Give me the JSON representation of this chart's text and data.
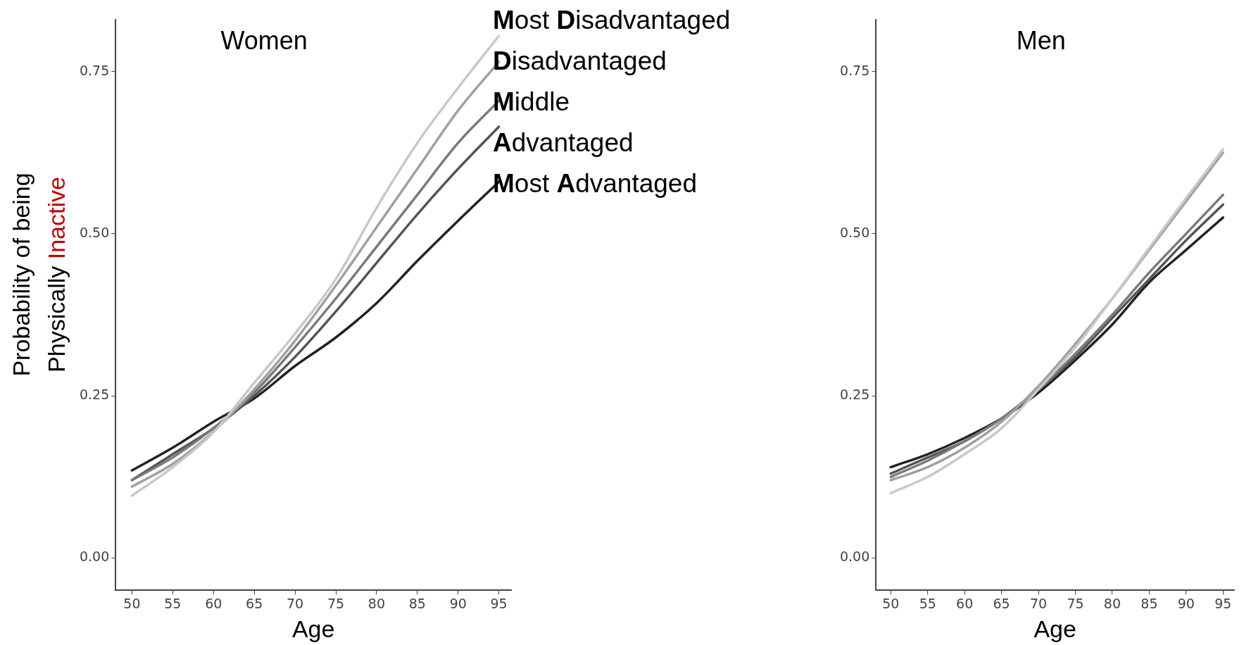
{
  "chart_data": [
    {
      "type": "line",
      "title": "Women",
      "xlabel": "Age",
      "ylabel": "Probability of being Physically Inactive",
      "x": [
        50,
        55,
        60,
        65,
        70,
        75,
        80,
        85,
        90,
        95
      ],
      "xlim": [
        48,
        96.5
      ],
      "xticks": [
        50,
        55,
        60,
        65,
        70,
        75,
        80,
        85,
        90,
        95
      ],
      "ylim": [
        -0.05,
        0.83
      ],
      "yticks": [
        {
          "value": 0,
          "label": "0.00"
        },
        {
          "value": 0.25,
          "label": "0.25"
        },
        {
          "value": 0.5,
          "label": "0.50"
        },
        {
          "value": 0.75,
          "label": "0.75"
        }
      ],
      "grid": false,
      "legend": "right",
      "marker": "none",
      "series": [
        {
          "name": "Most Disadvantaged",
          "color": "#c8c8c8",
          "values": [
            0.096,
            0.14,
            0.194,
            0.27,
            0.346,
            0.43,
            0.54,
            0.64,
            0.725,
            0.805
          ]
        },
        {
          "name": "Disadvantaged",
          "color": "#a0a0a0",
          "values": [
            0.11,
            0.145,
            0.195,
            0.26,
            0.335,
            0.42,
            0.51,
            0.6,
            0.69,
            0.765
          ]
        },
        {
          "name": "Middle",
          "color": "#7a7a7a",
          "values": [
            0.12,
            0.155,
            0.2,
            0.255,
            0.325,
            0.4,
            0.48,
            0.56,
            0.64,
            0.705
          ]
        },
        {
          "name": "Advantaged",
          "color": "#555555",
          "values": [
            0.12,
            0.16,
            0.2,
            0.25,
            0.31,
            0.38,
            0.455,
            0.53,
            0.6,
            0.665
          ]
        },
        {
          "name": "Most Advantaged",
          "color": "#222222",
          "values": [
            0.135,
            0.17,
            0.21,
            0.246,
            0.296,
            0.34,
            0.393,
            0.458,
            0.52,
            0.58
          ]
        }
      ]
    },
    {
      "type": "line",
      "title": "Men",
      "xlabel": "Age",
      "x": [
        50,
        55,
        60,
        65,
        70,
        75,
        80,
        85,
        90,
        95
      ],
      "xlim": [
        48,
        96.5
      ],
      "xticks": [
        50,
        55,
        60,
        65,
        70,
        75,
        80,
        85,
        90,
        95
      ],
      "ylim": [
        -0.05,
        0.83
      ],
      "yticks": [
        {
          "value": 0,
          "label": "0.00"
        },
        {
          "value": 0.25,
          "label": "0.25"
        },
        {
          "value": 0.5,
          "label": "0.50"
        },
        {
          "value": 0.75,
          "label": "0.75"
        }
      ],
      "grid": false,
      "marker": "none",
      "series": [
        {
          "color": "#c8c8c8",
          "values": [
            0.1,
            0.125,
            0.16,
            0.2,
            0.26,
            0.325,
            0.4,
            0.478,
            0.555,
            0.63
          ]
        },
        {
          "color": "#a0a0a0",
          "values": [
            0.12,
            0.14,
            0.17,
            0.21,
            0.265,
            0.33,
            0.4,
            0.475,
            0.55,
            0.625
          ]
        },
        {
          "color": "#7a7a7a",
          "values": [
            0.125,
            0.15,
            0.18,
            0.215,
            0.26,
            0.315,
            0.375,
            0.44,
            0.5,
            0.56
          ]
        },
        {
          "color": "#555555",
          "values": [
            0.13,
            0.155,
            0.18,
            0.215,
            0.26,
            0.31,
            0.37,
            0.43,
            0.49,
            0.545
          ]
        },
        {
          "color": "#222222",
          "values": [
            0.14,
            0.16,
            0.185,
            0.215,
            0.255,
            0.305,
            0.36,
            0.425,
            0.475,
            0.525
          ]
        }
      ]
    }
  ]
}
